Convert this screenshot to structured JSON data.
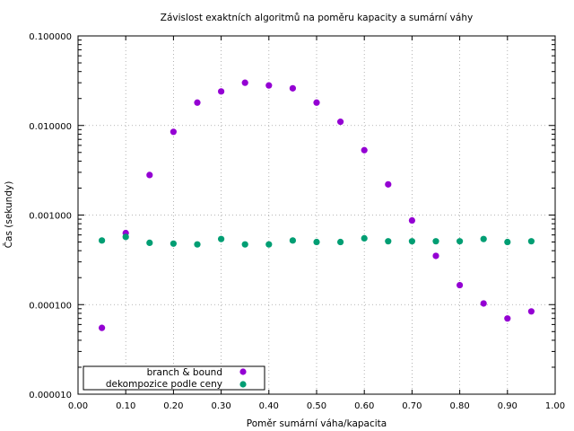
{
  "chart_data": {
    "type": "scatter",
    "title": "Závislost exaktních algoritmů na poměru kapacity a sumární váhy",
    "xlabel": "Poměr sumární váha/kapacita",
    "ylabel": "Čas (sekundy)",
    "xlim": [
      0.0,
      1.0
    ],
    "ylim": [
      1e-05,
      0.1
    ],
    "yscale": "log",
    "grid": true,
    "legend_position": "bottom-left",
    "x_ticks": [
      "0.00",
      "0.10",
      "0.20",
      "0.30",
      "0.40",
      "0.50",
      "0.60",
      "0.70",
      "0.80",
      "0.90",
      "1.00"
    ],
    "y_ticks": [
      "0.000010",
      "0.000100",
      "0.001000",
      "0.010000",
      "0.100000"
    ],
    "x": [
      0.05,
      0.1,
      0.15,
      0.2,
      0.25,
      0.3,
      0.35,
      0.4,
      0.45,
      0.5,
      0.55,
      0.6,
      0.65,
      0.7,
      0.75,
      0.8,
      0.85,
      0.9,
      0.95
    ],
    "series": [
      {
        "name": "branch & bound",
        "color": "#9400d3",
        "values": [
          5.5e-05,
          0.00063,
          0.0028,
          0.0085,
          0.018,
          0.024,
          0.03,
          0.028,
          0.026,
          0.018,
          0.011,
          0.0053,
          0.0022,
          0.00087,
          0.00035,
          0.000165,
          0.000103,
          7e-05,
          8.4e-05
        ]
      },
      {
        "name": "dekompozice podle ceny",
        "color": "#009e73",
        "values": [
          0.00052,
          0.00057,
          0.00049,
          0.00048,
          0.00047,
          0.00054,
          0.00047,
          0.00047,
          0.00052,
          0.0005,
          0.0005,
          0.00055,
          0.00051,
          0.00051,
          0.00051,
          0.00051,
          0.00054,
          0.0005,
          0.00051
        ]
      }
    ]
  }
}
